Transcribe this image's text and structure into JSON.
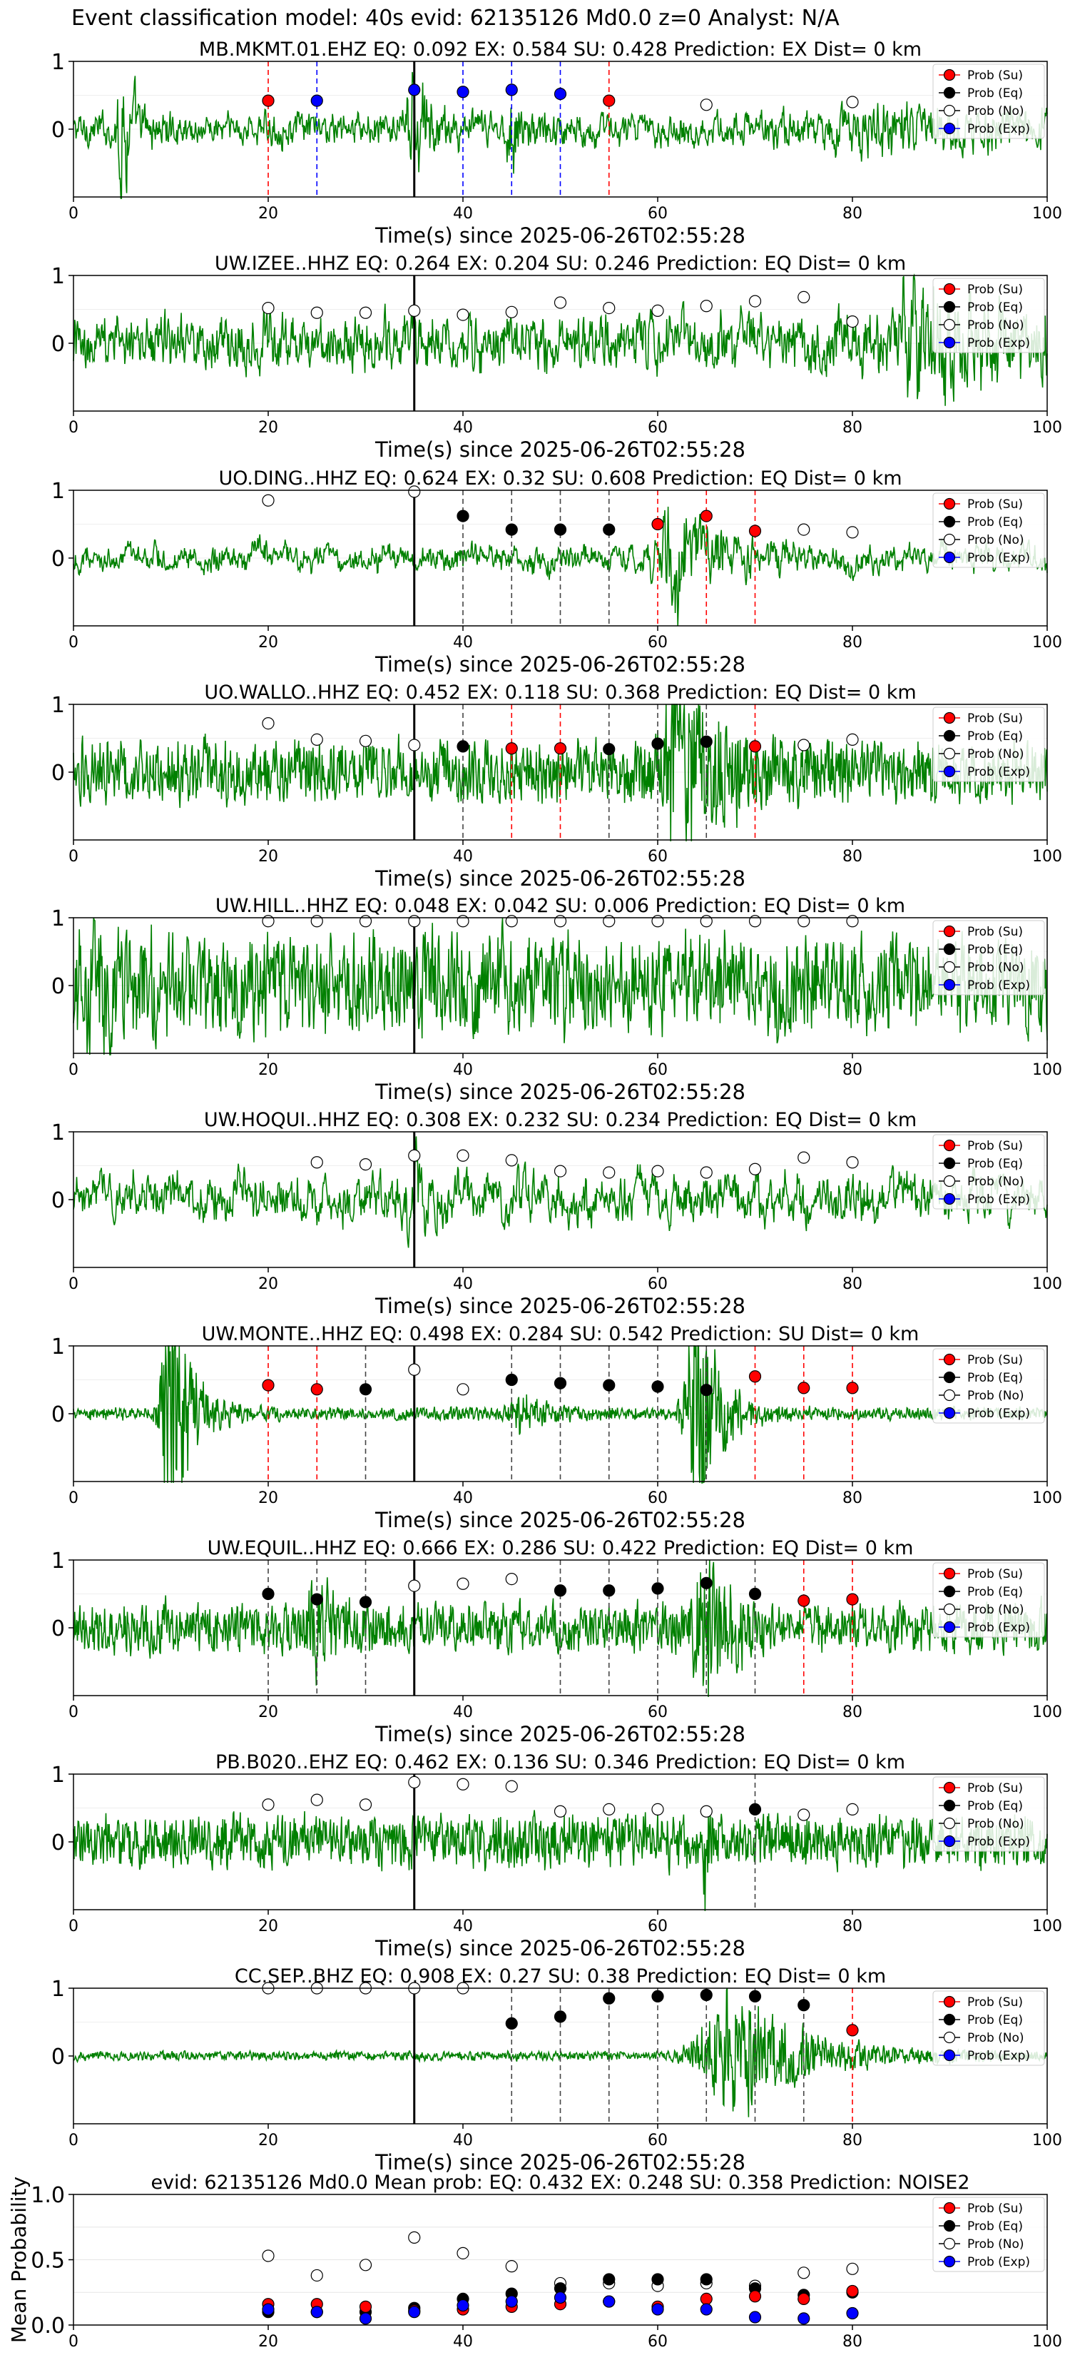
{
  "figure": {
    "suptitle": "Event classification model: 40s evid: 62135126 Md0.0 z=0 Analyst: N/A",
    "xlabel": "Time(s) since 2025-06-26T02:55:28",
    "legend": [
      "Prob (Su)",
      "Prob (Eq)",
      "Prob (No)",
      "Prob (Exp)"
    ],
    "colors": {
      "waveform": "#008000",
      "su": "#ff0000",
      "eq": "#000000",
      "no": "#ffffff",
      "exp": "#0000ff",
      "window_line": "#000000"
    }
  },
  "chart_data": [
    {
      "type": "line",
      "title": "MB.MKMT.01.EHZ   EQ: 0.092  EX: 0.584  SU: 0.428   Prediction: EX    Dist= 0 km",
      "xlim": [
        0,
        100
      ],
      "ylim": [
        -1,
        1
      ],
      "xticks": [
        0,
        20,
        40,
        60,
        80,
        100
      ],
      "yticks": [
        1,
        0
      ],
      "window_line": 35,
      "waveform": {
        "amp": 0.25,
        "low": 0.55,
        "bursts": [
          [
            5,
            1.2,
            0.9
          ],
          [
            35,
            1.5,
            0.9
          ],
          [
            45,
            1.0,
            0.5
          ],
          [
            82,
            15,
            0.2
          ]
        ]
      },
      "points": [
        {
          "x": 20,
          "y": 0.42,
          "cls": "su"
        },
        {
          "x": 25,
          "y": 0.42,
          "cls": "exp"
        },
        {
          "x": 35,
          "y": 0.58,
          "cls": "exp"
        },
        {
          "x": 40,
          "y": 0.55,
          "cls": "exp"
        },
        {
          "x": 45,
          "y": 0.58,
          "cls": "exp"
        },
        {
          "x": 50,
          "y": 0.52,
          "cls": "exp"
        },
        {
          "x": 55,
          "y": 0.42,
          "cls": "su"
        },
        {
          "x": 65,
          "y": 0.36,
          "cls": "no"
        },
        {
          "x": 80,
          "y": 0.4,
          "cls": "no"
        }
      ]
    },
    {
      "type": "line",
      "title": "UW.IZEE..HHZ   EQ: 0.264  EX: 0.204  SU: 0.246   Prediction: EQ    Dist= 0 km",
      "xlim": [
        0,
        100
      ],
      "ylim": [
        -1,
        1
      ],
      "xticks": [
        0,
        20,
        40,
        60,
        80,
        100
      ],
      "yticks": [
        1,
        0
      ],
      "window_line": 35,
      "waveform": {
        "amp": 0.42,
        "low": 0.5,
        "bursts": [
          [
            88,
            8,
            0.6
          ]
        ]
      },
      "points": [
        {
          "x": 20,
          "y": 0.52,
          "cls": "no"
        },
        {
          "x": 25,
          "y": 0.45,
          "cls": "no"
        },
        {
          "x": 30,
          "y": 0.45,
          "cls": "no"
        },
        {
          "x": 35,
          "y": 0.48,
          "cls": "no"
        },
        {
          "x": 40,
          "y": 0.42,
          "cls": "no"
        },
        {
          "x": 45,
          "y": 0.46,
          "cls": "no"
        },
        {
          "x": 50,
          "y": 0.6,
          "cls": "no"
        },
        {
          "x": 55,
          "y": 0.52,
          "cls": "no"
        },
        {
          "x": 60,
          "y": 0.48,
          "cls": "no"
        },
        {
          "x": 65,
          "y": 0.55,
          "cls": "no"
        },
        {
          "x": 70,
          "y": 0.62,
          "cls": "no"
        },
        {
          "x": 75,
          "y": 0.68,
          "cls": "no"
        },
        {
          "x": 80,
          "y": 0.32,
          "cls": "no"
        }
      ]
    },
    {
      "type": "line",
      "title": "UO.DING..HHZ   EQ: 0.624  EX: 0.32  SU: 0.608   Prediction: EQ    Dist= 0 km",
      "xlim": [
        0,
        100
      ],
      "ylim": [
        -1,
        1
      ],
      "xticks": [
        0,
        20,
        40,
        60,
        80,
        100
      ],
      "yticks": [
        1,
        0
      ],
      "window_line": 35,
      "waveform": {
        "amp": 0.35,
        "low": 0.85,
        "bursts": [
          [
            62,
            4,
            1.1
          ]
        ]
      },
      "points": [
        {
          "x": 20,
          "y": 0.85,
          "cls": "no"
        },
        {
          "x": 35,
          "y": 0.98,
          "cls": "no"
        },
        {
          "x": 40,
          "y": 0.62,
          "cls": "eq"
        },
        {
          "x": 45,
          "y": 0.42,
          "cls": "eq"
        },
        {
          "x": 50,
          "y": 0.42,
          "cls": "eq"
        },
        {
          "x": 55,
          "y": 0.42,
          "cls": "eq"
        },
        {
          "x": 60,
          "y": 0.5,
          "cls": "su"
        },
        {
          "x": 65,
          "y": 0.62,
          "cls": "su"
        },
        {
          "x": 70,
          "y": 0.4,
          "cls": "su"
        },
        {
          "x": 75,
          "y": 0.42,
          "cls": "no"
        },
        {
          "x": 80,
          "y": 0.38,
          "cls": "no"
        }
      ]
    },
    {
      "type": "line",
      "title": "UO.WALLO..HHZ   EQ: 0.452  EX: 0.118  SU: 0.368   Prediction: EQ    Dist= 0 km",
      "xlim": [
        0,
        100
      ],
      "ylim": [
        -1,
        1
      ],
      "xticks": [
        0,
        20,
        40,
        60,
        80,
        100
      ],
      "yticks": [
        1,
        0
      ],
      "window_line": 35,
      "waveform": {
        "amp": 0.35,
        "low": 0.2,
        "bursts": [
          [
            62,
            3.5,
            1.0
          ]
        ]
      },
      "points": [
        {
          "x": 20,
          "y": 0.72,
          "cls": "no"
        },
        {
          "x": 25,
          "y": 0.48,
          "cls": "no"
        },
        {
          "x": 30,
          "y": 0.46,
          "cls": "no"
        },
        {
          "x": 35,
          "y": 0.4,
          "cls": "no"
        },
        {
          "x": 40,
          "y": 0.38,
          "cls": "eq"
        },
        {
          "x": 45,
          "y": 0.35,
          "cls": "su"
        },
        {
          "x": 50,
          "y": 0.35,
          "cls": "su"
        },
        {
          "x": 55,
          "y": 0.34,
          "cls": "eq"
        },
        {
          "x": 60,
          "y": 0.42,
          "cls": "eq"
        },
        {
          "x": 65,
          "y": 0.45,
          "cls": "eq"
        },
        {
          "x": 70,
          "y": 0.38,
          "cls": "su"
        },
        {
          "x": 75,
          "y": 0.4,
          "cls": "no"
        },
        {
          "x": 80,
          "y": 0.48,
          "cls": "no"
        }
      ]
    },
    {
      "type": "line",
      "title": "UW.HILL..HHZ   EQ: 0.048  EX: 0.042  SU: 0.006   Prediction: EQ    Dist= 0 km",
      "xlim": [
        0,
        100
      ],
      "ylim": [
        -1,
        1
      ],
      "xticks": [
        0,
        20,
        40,
        60,
        80,
        100
      ],
      "yticks": [
        1,
        0
      ],
      "window_line": 35,
      "waveform": {
        "amp": 0.6,
        "low": 0.3,
        "bursts": [
          [
            2,
            4,
            0.4
          ]
        ]
      },
      "points": [
        {
          "x": 20,
          "y": 0.95,
          "cls": "no"
        },
        {
          "x": 25,
          "y": 0.95,
          "cls": "no"
        },
        {
          "x": 30,
          "y": 0.95,
          "cls": "no"
        },
        {
          "x": 35,
          "y": 0.95,
          "cls": "no"
        },
        {
          "x": 40,
          "y": 0.95,
          "cls": "no"
        },
        {
          "x": 45,
          "y": 0.95,
          "cls": "no"
        },
        {
          "x": 50,
          "y": 0.95,
          "cls": "no"
        },
        {
          "x": 55,
          "y": 0.95,
          "cls": "no"
        },
        {
          "x": 60,
          "y": 0.95,
          "cls": "no"
        },
        {
          "x": 65,
          "y": 0.95,
          "cls": "no"
        },
        {
          "x": 70,
          "y": 0.95,
          "cls": "no"
        },
        {
          "x": 75,
          "y": 0.95,
          "cls": "no"
        },
        {
          "x": 80,
          "y": 0.95,
          "cls": "no"
        }
      ]
    },
    {
      "type": "line",
      "title": "UW.HOQUI..HHZ   EQ: 0.308  EX: 0.232  SU: 0.234   Prediction: EQ    Dist= 0 km",
      "xlim": [
        0,
        100
      ],
      "ylim": [
        -1,
        1
      ],
      "xticks": [
        0,
        20,
        40,
        60,
        80,
        100
      ],
      "yticks": [
        1,
        0
      ],
      "window_line": 35,
      "waveform": {
        "amp": 0.5,
        "low": 0.75,
        "bursts": [
          [
            35,
            3,
            0.5
          ]
        ]
      },
      "points": [
        {
          "x": 25,
          "y": 0.55,
          "cls": "no"
        },
        {
          "x": 30,
          "y": 0.52,
          "cls": "no"
        },
        {
          "x": 35,
          "y": 0.65,
          "cls": "no"
        },
        {
          "x": 40,
          "y": 0.65,
          "cls": "no"
        },
        {
          "x": 45,
          "y": 0.58,
          "cls": "no"
        },
        {
          "x": 50,
          "y": 0.42,
          "cls": "no"
        },
        {
          "x": 55,
          "y": 0.4,
          "cls": "no"
        },
        {
          "x": 60,
          "y": 0.42,
          "cls": "no"
        },
        {
          "x": 65,
          "y": 0.4,
          "cls": "no"
        },
        {
          "x": 70,
          "y": 0.45,
          "cls": "no"
        },
        {
          "x": 75,
          "y": 0.62,
          "cls": "no"
        },
        {
          "x": 80,
          "y": 0.55,
          "cls": "no"
        }
      ]
    },
    {
      "type": "line",
      "title": "UW.MONTE..HHZ   EQ: 0.498  EX: 0.284  SU: 0.542   Prediction: SU    Dist= 0 km",
      "xlim": [
        0,
        100
      ],
      "ylim": [
        -1,
        1
      ],
      "xticks": [
        0,
        20,
        40,
        60,
        80,
        100
      ],
      "yticks": [
        1,
        0
      ],
      "window_line": 35,
      "waveform": {
        "amp": 0.07,
        "low": 0.2,
        "bursts": [
          [
            10,
            2.0,
            1.6
          ],
          [
            64,
            2.2,
            1.4
          ],
          [
            46,
            2.5,
            0.2
          ]
        ]
      },
      "points": [
        {
          "x": 20,
          "y": 0.42,
          "cls": "su"
        },
        {
          "x": 25,
          "y": 0.36,
          "cls": "su"
        },
        {
          "x": 30,
          "y": 0.36,
          "cls": "eq"
        },
        {
          "x": 35,
          "y": 0.65,
          "cls": "no"
        },
        {
          "x": 40,
          "y": 0.36,
          "cls": "no"
        },
        {
          "x": 45,
          "y": 0.5,
          "cls": "eq"
        },
        {
          "x": 50,
          "y": 0.45,
          "cls": "eq"
        },
        {
          "x": 55,
          "y": 0.42,
          "cls": "eq"
        },
        {
          "x": 60,
          "y": 0.4,
          "cls": "eq"
        },
        {
          "x": 65,
          "y": 0.35,
          "cls": "eq"
        },
        {
          "x": 70,
          "y": 0.55,
          "cls": "su"
        },
        {
          "x": 75,
          "y": 0.38,
          "cls": "su"
        },
        {
          "x": 80,
          "y": 0.38,
          "cls": "su"
        }
      ]
    },
    {
      "type": "line",
      "title": "UW.EQUIL..HHZ   EQ: 0.666  EX: 0.286  SU: 0.422   Prediction: EQ    Dist= 0 km",
      "xlim": [
        0,
        100
      ],
      "ylim": [
        -1,
        1
      ],
      "xticks": [
        0,
        20,
        40,
        60,
        80,
        100
      ],
      "yticks": [
        1,
        0
      ],
      "window_line": 35,
      "waveform": {
        "amp": 0.3,
        "low": 0.3,
        "bursts": [
          [
            65,
            2.5,
            0.9
          ],
          [
            25,
            3,
            0.3
          ]
        ]
      },
      "points": [
        {
          "x": 20,
          "y": 0.5,
          "cls": "eq"
        },
        {
          "x": 25,
          "y": 0.42,
          "cls": "eq"
        },
        {
          "x": 30,
          "y": 0.38,
          "cls": "eq"
        },
        {
          "x": 35,
          "y": 0.62,
          "cls": "no"
        },
        {
          "x": 40,
          "y": 0.65,
          "cls": "no"
        },
        {
          "x": 45,
          "y": 0.72,
          "cls": "no"
        },
        {
          "x": 50,
          "y": 0.55,
          "cls": "eq"
        },
        {
          "x": 55,
          "y": 0.55,
          "cls": "eq"
        },
        {
          "x": 60,
          "y": 0.58,
          "cls": "eq"
        },
        {
          "x": 65,
          "y": 0.66,
          "cls": "eq"
        },
        {
          "x": 70,
          "y": 0.5,
          "cls": "eq"
        },
        {
          "x": 75,
          "y": 0.4,
          "cls": "su"
        },
        {
          "x": 80,
          "y": 0.42,
          "cls": "su"
        }
      ]
    },
    {
      "type": "line",
      "title": "PB.B020..EHZ   EQ: 0.462  EX: 0.136  SU: 0.346   Prediction: EQ    Dist= 0 km",
      "xlim": [
        0,
        100
      ],
      "ylim": [
        -1,
        1
      ],
      "xticks": [
        0,
        20,
        40,
        60,
        80,
        100
      ],
      "yticks": [
        1,
        0
      ],
      "window_line": 35,
      "waveform": {
        "amp": 0.3,
        "low": 0.2,
        "bursts": [
          [
            64.8,
            0.15,
            2.0
          ]
        ]
      },
      "points": [
        {
          "x": 20,
          "y": 0.55,
          "cls": "no"
        },
        {
          "x": 25,
          "y": 0.62,
          "cls": "no"
        },
        {
          "x": 30,
          "y": 0.55,
          "cls": "no"
        },
        {
          "x": 35,
          "y": 0.88,
          "cls": "no"
        },
        {
          "x": 40,
          "y": 0.85,
          "cls": "no"
        },
        {
          "x": 45,
          "y": 0.82,
          "cls": "no"
        },
        {
          "x": 50,
          "y": 0.45,
          "cls": "no"
        },
        {
          "x": 55,
          "y": 0.48,
          "cls": "no"
        },
        {
          "x": 60,
          "y": 0.48,
          "cls": "no"
        },
        {
          "x": 65,
          "y": 0.45,
          "cls": "no"
        },
        {
          "x": 70,
          "y": 0.48,
          "cls": "eq"
        },
        {
          "x": 75,
          "y": 0.4,
          "cls": "no"
        },
        {
          "x": 80,
          "y": 0.48,
          "cls": "no"
        }
      ]
    },
    {
      "type": "line",
      "title": "CC.SEP..BHZ   EQ: 0.908  EX: 0.27  SU: 0.38   Prediction: EQ    Dist= 0 km",
      "xlim": [
        0,
        100
      ],
      "ylim": [
        -1,
        1
      ],
      "xticks": [
        0,
        20,
        40,
        60,
        80,
        100
      ],
      "yticks": [
        1,
        0
      ],
      "window_line": 35,
      "waveform": {
        "amp": 0.05,
        "low": 0.2,
        "bursts": [
          [
            68,
            7,
            0.7
          ]
        ]
      },
      "points": [
        {
          "x": 20,
          "y": 1.0,
          "cls": "no"
        },
        {
          "x": 25,
          "y": 1.0,
          "cls": "no"
        },
        {
          "x": 30,
          "y": 1.0,
          "cls": "no"
        },
        {
          "x": 35,
          "y": 1.0,
          "cls": "no"
        },
        {
          "x": 40,
          "y": 1.0,
          "cls": "no"
        },
        {
          "x": 45,
          "y": 0.48,
          "cls": "eq"
        },
        {
          "x": 50,
          "y": 0.58,
          "cls": "eq"
        },
        {
          "x": 55,
          "y": 0.85,
          "cls": "eq"
        },
        {
          "x": 60,
          "y": 0.88,
          "cls": "eq"
        },
        {
          "x": 65,
          "y": 0.9,
          "cls": "eq"
        },
        {
          "x": 70,
          "y": 0.88,
          "cls": "eq"
        },
        {
          "x": 75,
          "y": 0.75,
          "cls": "eq"
        },
        {
          "x": 80,
          "y": 0.38,
          "cls": "su"
        }
      ]
    },
    {
      "type": "scatter",
      "title": "evid: 62135126  Md0.0   Mean prob:   EQ: 0.432  EX: 0.248  SU: 0.358   Prediction: NOISE2",
      "ylabel": "Mean Probability",
      "xlim": [
        0,
        100
      ],
      "ylim": [
        0,
        1
      ],
      "xticks": [
        0,
        20,
        40,
        60,
        80,
        100
      ],
      "yticks": [
        1.0,
        0.5,
        0.0
      ],
      "series": [
        {
          "name": "Prob (No)",
          "cls": "no",
          "x": [
            20,
            25,
            30,
            35,
            40,
            45,
            50,
            55,
            60,
            65,
            70,
            75,
            80
          ],
          "values": [
            0.53,
            0.38,
            0.46,
            0.67,
            0.55,
            0.45,
            0.32,
            0.32,
            0.3,
            0.32,
            0.3,
            0.4,
            0.43
          ]
        },
        {
          "name": "Prob (Eq)",
          "cls": "eq",
          "x": [
            20,
            25,
            30,
            35,
            40,
            45,
            50,
            55,
            60,
            65,
            70,
            75,
            80
          ],
          "values": [
            0.1,
            0.1,
            0.1,
            0.13,
            0.2,
            0.24,
            0.28,
            0.35,
            0.35,
            0.35,
            0.28,
            0.23,
            0.25
          ]
        },
        {
          "name": "Prob (Su)",
          "cls": "su",
          "x": [
            20,
            25,
            30,
            35,
            40,
            45,
            50,
            55,
            60,
            65,
            70,
            75,
            80
          ],
          "values": [
            0.16,
            0.16,
            0.14,
            0.11,
            0.12,
            0.14,
            0.16,
            0.18,
            0.14,
            0.2,
            0.22,
            0.2,
            0.26
          ]
        },
        {
          "name": "Prob (Exp)",
          "cls": "exp",
          "x": [
            20,
            25,
            30,
            35,
            40,
            45,
            50,
            55,
            60,
            65,
            70,
            75,
            80
          ],
          "values": [
            0.12,
            0.1,
            0.05,
            0.1,
            0.15,
            0.18,
            0.21,
            0.18,
            0.12,
            0.12,
            0.06,
            0.05,
            0.09
          ]
        }
      ]
    }
  ]
}
